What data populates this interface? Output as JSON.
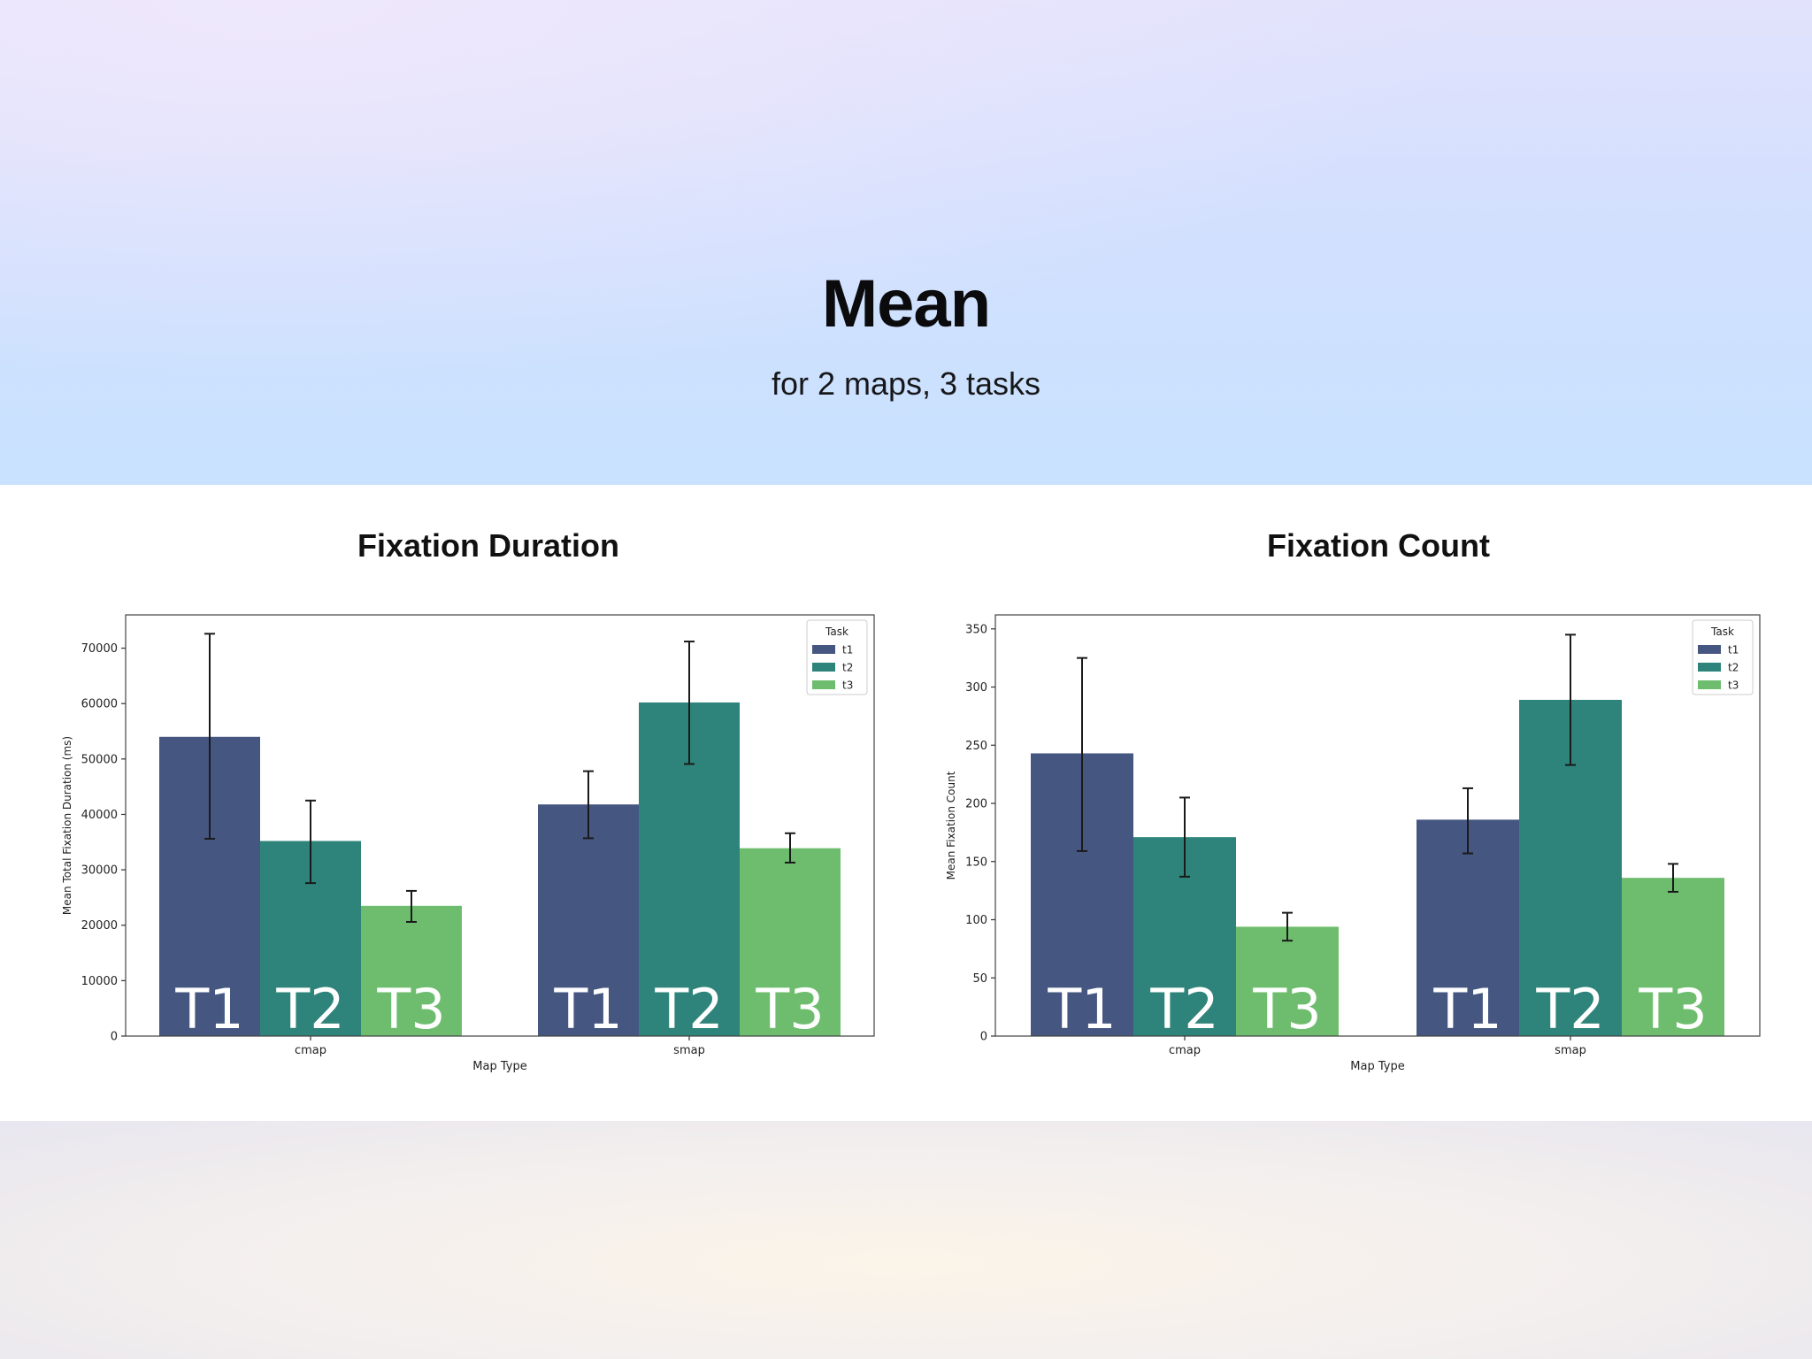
{
  "header": {
    "title": "Mean",
    "subtitle": "for 2 maps, 3 tasks"
  },
  "colors": {
    "t1": "#455681",
    "t2": "#2e847a",
    "t3": "#6ebd6e"
  },
  "chart_data": [
    {
      "type": "bar",
      "title": "Fixation Duration",
      "xlabel": "Map Type",
      "ylabel": "Mean Total Fixation Duration (ms)",
      "categories": [
        "cmap",
        "smap"
      ],
      "ylim": [
        0,
        76000
      ],
      "yticks": [
        0,
        10000,
        20000,
        30000,
        40000,
        50000,
        60000,
        70000
      ],
      "legend_title": "Task",
      "legend_position": "top-right",
      "series": [
        {
          "name": "t1",
          "label": "T1",
          "values": [
            54000,
            41800
          ],
          "err_low": [
            35600,
            35700
          ],
          "err_high": [
            72600,
            47800
          ]
        },
        {
          "name": "t2",
          "label": "T2",
          "values": [
            35200,
            60200
          ],
          "err_low": [
            27600,
            49100
          ],
          "err_high": [
            42500,
            71200
          ]
        },
        {
          "name": "t3",
          "label": "T3",
          "values": [
            23500,
            33900
          ],
          "err_low": [
            20600,
            31300
          ],
          "err_high": [
            26200,
            36600
          ]
        }
      ]
    },
    {
      "type": "bar",
      "title": "Fixation Count",
      "xlabel": "Map Type",
      "ylabel": "Mean Fixation Count",
      "categories": [
        "cmap",
        "smap"
      ],
      "ylim": [
        0,
        362
      ],
      "yticks": [
        0,
        50,
        100,
        150,
        200,
        250,
        300,
        350
      ],
      "legend_title": "Task",
      "legend_position": "top-right",
      "series": [
        {
          "name": "t1",
          "label": "T1",
          "values": [
            243,
            186
          ],
          "err_low": [
            159,
            157
          ],
          "err_high": [
            325,
            213
          ]
        },
        {
          "name": "t2",
          "label": "T2",
          "values": [
            171,
            289
          ],
          "err_low": [
            137,
            233
          ],
          "err_high": [
            205,
            345
          ]
        },
        {
          "name": "t3",
          "label": "T3",
          "values": [
            94,
            136
          ],
          "err_low": [
            82,
            124
          ],
          "err_high": [
            106,
            148
          ]
        }
      ]
    }
  ]
}
